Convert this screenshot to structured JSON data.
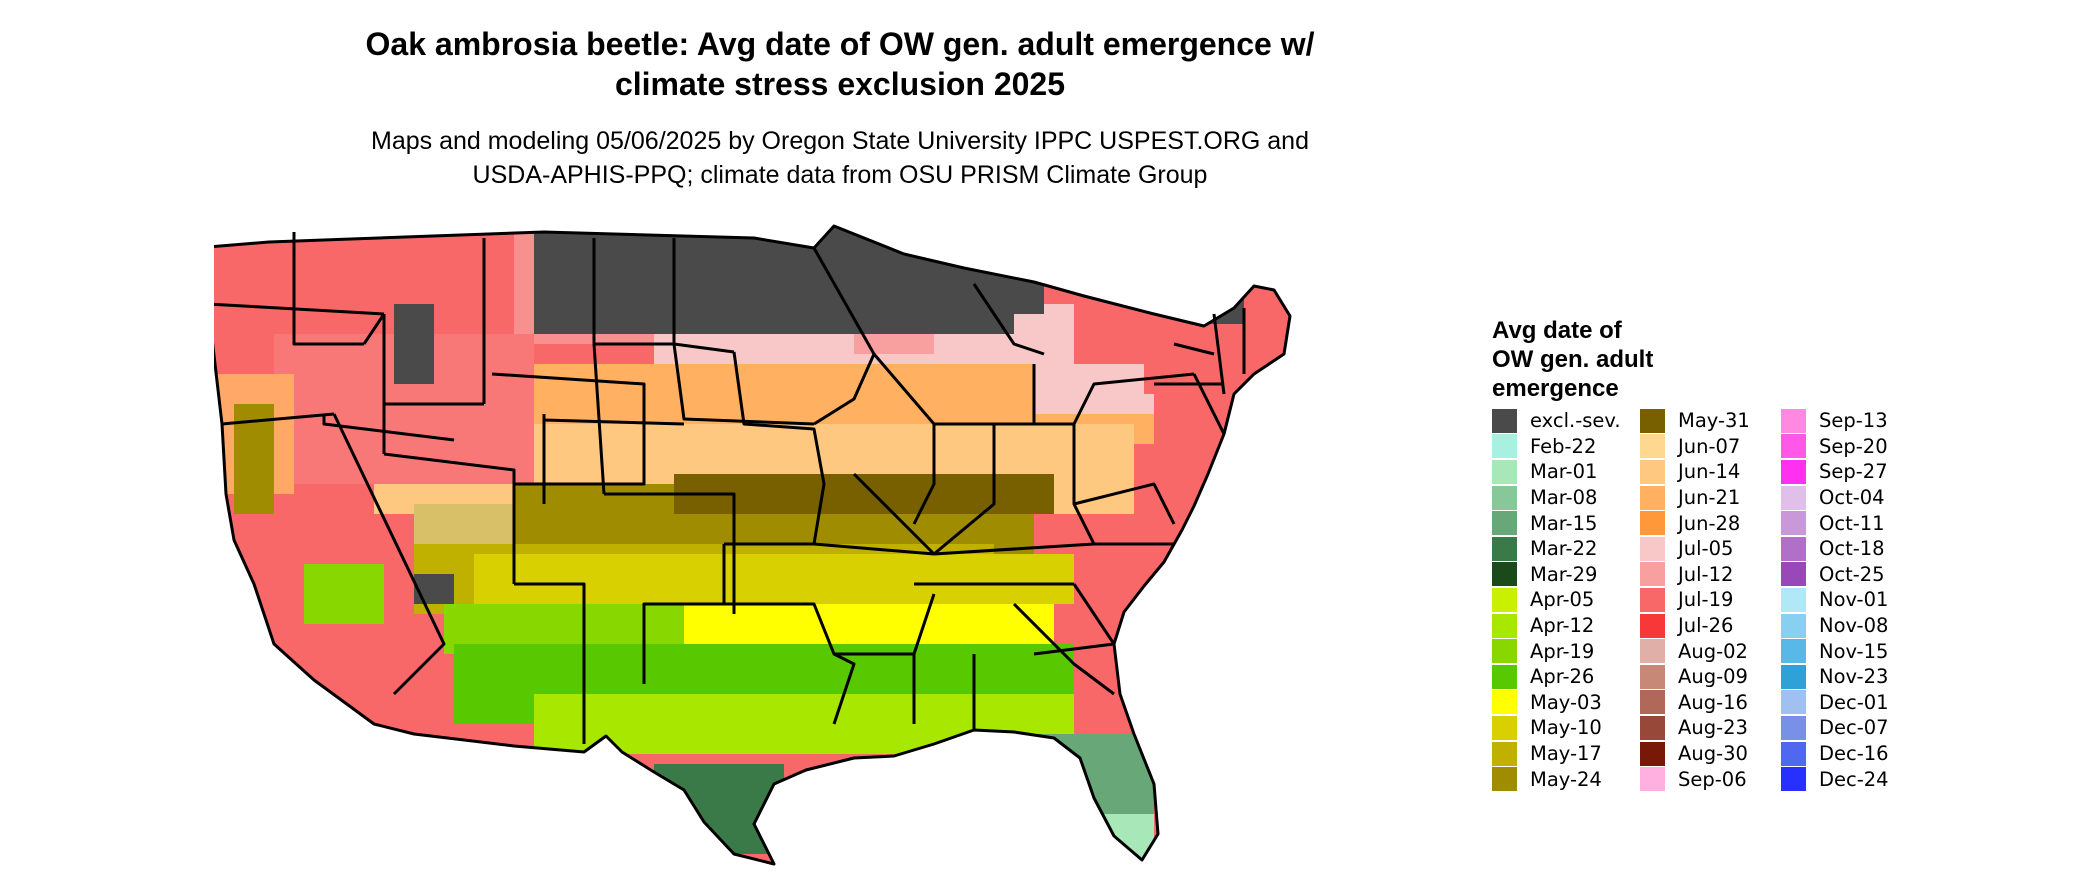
{
  "title_lines": [
    "Oak ambrosia beetle: Avg date of OW gen. adult emergence w/",
    "climate stress exclusion 2025"
  ],
  "subtitle_lines": [
    "Maps and modeling 05/06/2025 by Oregon State University IPPC USPEST.ORG and",
    "USDA-APHIS-PPQ; climate data from OSU PRISM Climate Group"
  ],
  "legend": {
    "title_lines": [
      "Avg date of",
      "OW gen. adult",
      "emergence"
    ],
    "columns": [
      [
        {
          "label": "excl.-sev.",
          "color": "#4a4a4a"
        },
        {
          "label": "Feb-22",
          "color": "#a8f0e0"
        },
        {
          "label": "Mar-01",
          "color": "#a8e8b8"
        },
        {
          "label": "Mar-08",
          "color": "#88c898"
        },
        {
          "label": "Mar-15",
          "color": "#68a878"
        },
        {
          "label": "Mar-22",
          "color": "#3a7a48"
        },
        {
          "label": "Mar-29",
          "color": "#1a4a1a"
        },
        {
          "label": "Apr-05",
          "color": "#c8f000"
        },
        {
          "label": "Apr-12",
          "color": "#a8e800"
        },
        {
          "label": "Apr-19",
          "color": "#88d800"
        },
        {
          "label": "Apr-26",
          "color": "#58c800"
        },
        {
          "label": "May-03",
          "color": "#ffff00"
        },
        {
          "label": "May-10",
          "color": "#d8d000"
        },
        {
          "label": "May-17",
          "color": "#c0b000"
        },
        {
          "label": "May-24",
          "color": "#a08c00"
        }
      ],
      [
        {
          "label": "May-31",
          "color": "#786000"
        },
        {
          "label": "Jun-07",
          "color": "#ffd890"
        },
        {
          "label": "Jun-14",
          "color": "#ffc880"
        },
        {
          "label": "Jun-21",
          "color": "#ffb060"
        },
        {
          "label": "Jun-28",
          "color": "#ff9838"
        },
        {
          "label": "Jul-05",
          "color": "#f8c8c8"
        },
        {
          "label": "Jul-12",
          "color": "#f8a0a0"
        },
        {
          "label": "Jul-19",
          "color": "#f86868"
        },
        {
          "label": "Jul-26",
          "color": "#f83838"
        },
        {
          "label": "Aug-02",
          "color": "#e0b0a8"
        },
        {
          "label": "Aug-09",
          "color": "#c88878"
        },
        {
          "label": "Aug-16",
          "color": "#b06858"
        },
        {
          "label": "Aug-23",
          "color": "#984838"
        },
        {
          "label": "Aug-30",
          "color": "#781808"
        },
        {
          "label": "Sep-06",
          "color": "#ffb0e0"
        }
      ],
      [
        {
          "label": "Sep-13",
          "color": "#ff88e0"
        },
        {
          "label": "Sep-20",
          "color": "#ff58e8"
        },
        {
          "label": "Sep-27",
          "color": "#ff30f0"
        },
        {
          "label": "Oct-04",
          "color": "#e0c0e8"
        },
        {
          "label": "Oct-11",
          "color": "#c898d8"
        },
        {
          "label": "Oct-18",
          "color": "#b070c8"
        },
        {
          "label": "Oct-25",
          "color": "#9848b8"
        },
        {
          "label": "Nov-01",
          "color": "#b0e8f8"
        },
        {
          "label": "Nov-08",
          "color": "#88d0f0"
        },
        {
          "label": "Nov-15",
          "color": "#58b8e8"
        },
        {
          "label": "Nov-23",
          "color": "#30a0d8"
        },
        {
          "label": "Dec-01",
          "color": "#a0c0f0"
        },
        {
          "label": "Dec-07",
          "color": "#7890e8"
        },
        {
          "label": "Dec-16",
          "color": "#5068f0"
        },
        {
          "label": "Dec-24",
          "color": "#2830ff"
        }
      ]
    ]
  }
}
